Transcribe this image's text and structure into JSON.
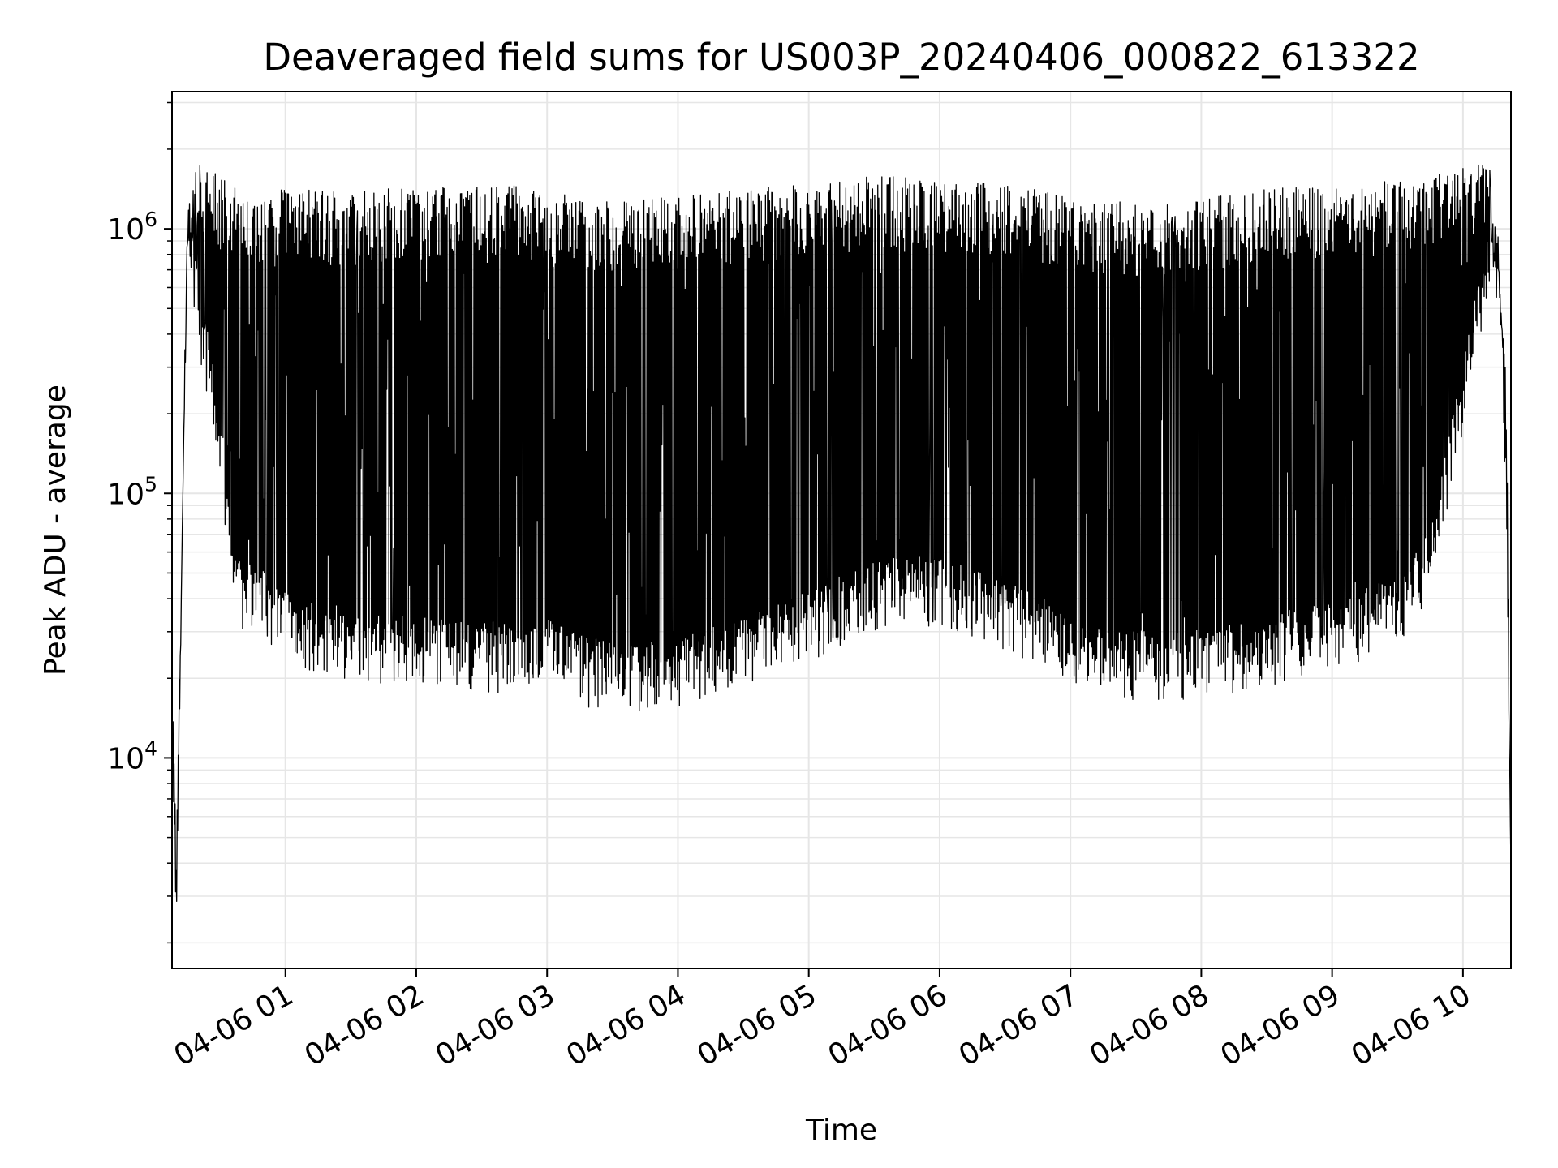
{
  "chart_data": {
    "type": "line",
    "title": "Deaveraged field sums for US003P_20240406_000822_613322",
    "xlabel": "Time",
    "ylabel": "Peak ADU - average",
    "y_scale": "log",
    "ylim": [
      1600,
      3300000
    ],
    "xlim": [
      "2024-04-06 00:08:00",
      "2024-04-06 10:22:00"
    ],
    "grid": true,
    "legend": "none",
    "line_color": "#000000",
    "grid_color": "#e6e6e6",
    "x_ticks": [
      {
        "value": "2024-04-06 01:00",
        "label": "04-06 01"
      },
      {
        "value": "2024-04-06 02:00",
        "label": "04-06 02"
      },
      {
        "value": "2024-04-06 03:00",
        "label": "04-06 03"
      },
      {
        "value": "2024-04-06 04:00",
        "label": "04-06 04"
      },
      {
        "value": "2024-04-06 05:00",
        "label": "04-06 05"
      },
      {
        "value": "2024-04-06 06:00",
        "label": "04-06 06"
      },
      {
        "value": "2024-04-06 07:00",
        "label": "04-06 07"
      },
      {
        "value": "2024-04-06 08:00",
        "label": "04-06 08"
      },
      {
        "value": "2024-04-06 09:00",
        "label": "04-06 09"
      },
      {
        "value": "2024-04-06 10:00",
        "label": "04-06 10"
      }
    ],
    "y_ticks": [
      {
        "value": 10000,
        "base": "10",
        "exponent": "4"
      },
      {
        "value": 100000,
        "base": "10",
        "exponent": "5"
      },
      {
        "value": 1000000,
        "base": "10",
        "exponent": "6"
      }
    ],
    "series": [
      {
        "x": [
          "2024-04-06 00:08",
          "2024-04-06 00:10",
          "2024-04-06 00:12",
          "2024-04-06 00:15",
          "2024-04-06 00:20",
          "2024-04-06 00:25",
          "2024-04-06 00:30",
          "2024-04-06 00:35",
          "2024-04-06 00:40",
          "2024-04-06 00:45",
          "2024-04-06 00:50",
          "2024-04-06 00:55",
          "2024-04-06 01:00",
          "2024-04-06 01:10",
          "2024-04-06 01:20",
          "2024-04-06 01:30",
          "2024-04-06 01:45",
          "2024-04-06 02:00",
          "2024-04-06 02:20",
          "2024-04-06 02:40",
          "2024-04-06 03:00",
          "2024-04-06 03:20",
          "2024-04-06 03:40",
          "2024-04-06 04:00",
          "2024-04-06 04:20",
          "2024-04-06 04:40",
          "2024-04-06 05:00",
          "2024-04-06 05:20",
          "2024-04-06 05:40",
          "2024-04-06 06:00",
          "2024-04-06 06:20",
          "2024-04-06 06:40",
          "2024-04-06 07:00",
          "2024-04-06 07:20",
          "2024-04-06 07:40",
          "2024-04-06 08:00",
          "2024-04-06 08:20",
          "2024-04-06 08:40",
          "2024-04-06 09:00",
          "2024-04-06 09:20",
          "2024-04-06 09:35",
          "2024-04-06 09:45",
          "2024-04-06 09:55",
          "2024-04-06 10:05",
          "2024-04-06 10:12",
          "2024-04-06 10:17",
          "2024-04-06 10:20",
          "2024-04-06 10:22"
        ],
        "upper": [
          20000,
          4000,
          40000,
          1200000,
          1600000,
          1500000,
          1400000,
          1300000,
          1200000,
          1200000,
          1100000,
          1300000,
          1300000,
          1250000,
          1200000,
          1200000,
          1250000,
          1250000,
          1250000,
          1300000,
          1200000,
          1150000,
          1150000,
          1150000,
          1200000,
          1250000,
          1300000,
          1350000,
          1400000,
          1350000,
          1300000,
          1250000,
          1150000,
          1100000,
          1100000,
          1150000,
          1200000,
          1250000,
          1250000,
          1300000,
          1350000,
          1400000,
          1450000,
          1500000,
          1600000,
          800000,
          200000,
          4000
        ],
        "lower": [
          14000,
          2500,
          30000,
          1000000,
          500000,
          300000,
          150000,
          60000,
          40000,
          45000,
          40000,
          35000,
          35000,
          30000,
          30000,
          28000,
          27000,
          27000,
          26000,
          25000,
          26000,
          22000,
          21000,
          22000,
          25000,
          28000,
          33000,
          40000,
          45000,
          45000,
          40000,
          33000,
          27000,
          24000,
          23000,
          24000,
          25000,
          28000,
          30000,
          35000,
          40000,
          60000,
          150000,
          400000,
          800000,
          600000,
          100000,
          2800
        ]
      }
    ]
  }
}
